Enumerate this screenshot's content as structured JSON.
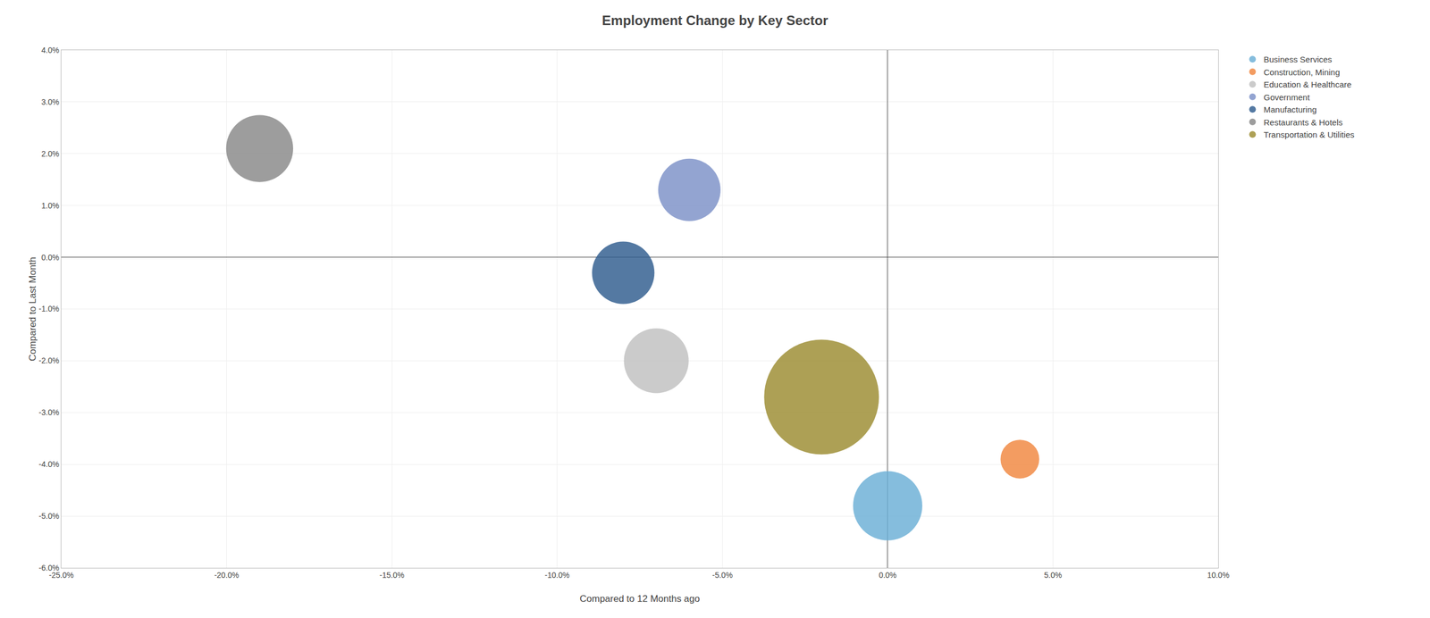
{
  "chart_data": {
    "type": "bubble",
    "title": "Employment Change by Key Sector",
    "xlabel": "Compared to 12 Months ago",
    "ylabel": "Compared to Last Month",
    "series": [
      {
        "name": "Business Services",
        "color": "#6aaed6",
        "x": [
          0.0
        ],
        "values": [
          -0.048
        ],
        "size": [
          8000
        ]
      },
      {
        "name": "Construction, Mining",
        "color": "#f0863e",
        "x": [
          0.04
        ],
        "values": [
          -0.039
        ],
        "size": [
          2500
        ]
      },
      {
        "name": "Education & Healthcare",
        "color": "#c0c0c0",
        "x": [
          -0.07
        ],
        "values": [
          -0.02
        ],
        "size": [
          7000
        ]
      },
      {
        "name": "Government",
        "color": "#7b90c7",
        "x": [
          -0.06
        ],
        "values": [
          0.013
        ],
        "size": [
          6500
        ]
      },
      {
        "name": "Manufacturing",
        "color": "#2e5b8e",
        "x": [
          -0.08
        ],
        "values": [
          -0.003
        ],
        "size": [
          6500
        ]
      },
      {
        "name": "Restaurants & Hotels",
        "color": "#888888",
        "x": [
          -0.19
        ],
        "values": [
          0.021
        ],
        "size": [
          7500
        ]
      },
      {
        "name": "Transportation & Utilities",
        "color": "#9b8b30",
        "x": [
          -0.02
        ],
        "values": [
          -0.027
        ],
        "size": [
          22000
        ]
      }
    ],
    "xlim": [
      -0.25,
      0.1
    ],
    "ylim": [
      -0.06,
      0.04
    ],
    "xticks": [
      {
        "value": -0.25,
        "label": "-25.0%"
      },
      {
        "value": -0.2,
        "label": "-20.0%"
      },
      {
        "value": -0.15,
        "label": "-15.0%"
      },
      {
        "value": -0.1,
        "label": "-10.0%"
      },
      {
        "value": -0.05,
        "label": "-5.0%"
      },
      {
        "value": 0.0,
        "label": "0.0%"
      },
      {
        "value": 0.05,
        "label": "5.0%"
      },
      {
        "value": 0.1,
        "label": "10.0%"
      }
    ],
    "yticks": [
      {
        "value": -0.06,
        "label": "-6.0%"
      },
      {
        "value": -0.05,
        "label": "-5.0%"
      },
      {
        "value": -0.04,
        "label": "-4.0%"
      },
      {
        "value": -0.03,
        "label": "-3.0%"
      },
      {
        "value": -0.02,
        "label": "-2.0%"
      },
      {
        "value": -0.01,
        "label": "-1.0%"
      },
      {
        "value": 0.0,
        "label": "0.0%"
      },
      {
        "value": 0.01,
        "label": "1.0%"
      },
      {
        "value": 0.02,
        "label": "2.0%"
      },
      {
        "value": 0.03,
        "label": "3.0%"
      },
      {
        "value": 0.04,
        "label": "4.0%"
      }
    ],
    "grid": true,
    "legend": "right"
  }
}
